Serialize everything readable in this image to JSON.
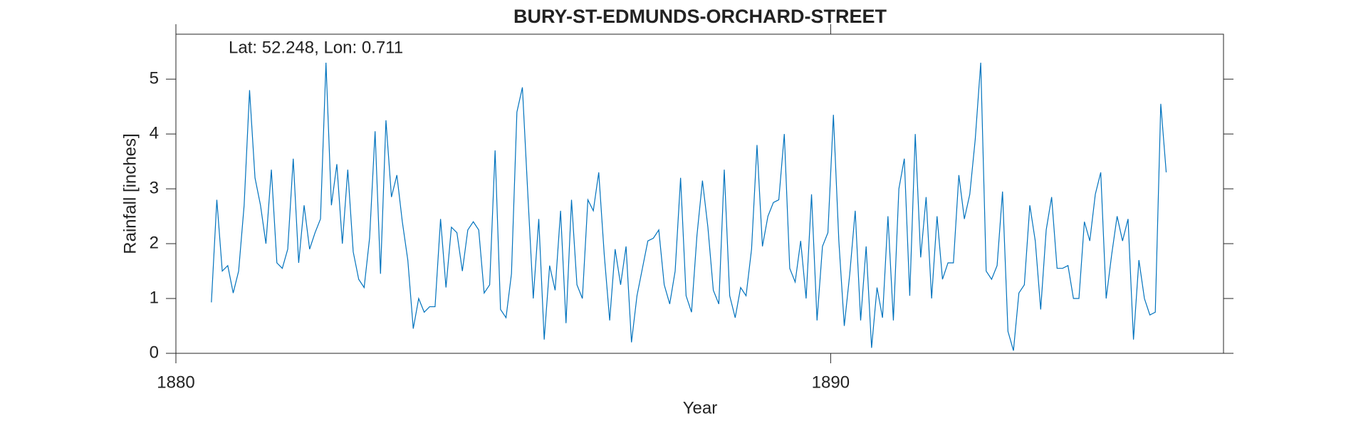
{
  "chart_data": {
    "type": "line",
    "title": "BURY-ST-EDMUNDS-ORCHARD-STREET",
    "annotation": "Lat: 52.248, Lon: 0.711",
    "x_label": "Year",
    "y_label": "Rainfall [inches]",
    "xlim": [
      1880,
      1896
    ],
    "xticks": [
      1880,
      1890
    ],
    "ylim": [
      0,
      5.82
    ],
    "yticks": [
      0,
      1,
      2,
      3,
      4,
      5
    ],
    "color": "#0072bd",
    "x": [
      1880.542,
      1880.625,
      1880.708,
      1880.792,
      1880.875,
      1880.958,
      1881.042,
      1881.125,
      1881.208,
      1881.292,
      1881.375,
      1881.458,
      1881.542,
      1881.625,
      1881.708,
      1881.792,
      1881.875,
      1881.958,
      1882.042,
      1882.125,
      1882.208,
      1882.292,
      1882.375,
      1882.458,
      1882.542,
      1882.625,
      1882.708,
      1882.792,
      1882.875,
      1882.958,
      1883.042,
      1883.125,
      1883.208,
      1883.292,
      1883.375,
      1883.458,
      1883.542,
      1883.625,
      1883.708,
      1883.792,
      1883.875,
      1883.958,
      1884.042,
      1884.125,
      1884.208,
      1884.292,
      1884.375,
      1884.458,
      1884.542,
      1884.625,
      1884.708,
      1884.792,
      1884.875,
      1884.958,
      1885.042,
      1885.125,
      1885.208,
      1885.292,
      1885.375,
      1885.458,
      1885.542,
      1885.625,
      1885.708,
      1885.792,
      1885.875,
      1885.958,
      1886.042,
      1886.125,
      1886.208,
      1886.292,
      1886.375,
      1886.458,
      1886.542,
      1886.625,
      1886.708,
      1886.792,
      1886.875,
      1886.958,
      1887.042,
      1887.125,
      1887.208,
      1887.292,
      1887.375,
      1887.458,
      1887.542,
      1887.625,
      1887.708,
      1887.792,
      1887.875,
      1887.958,
      1888.042,
      1888.125,
      1888.208,
      1888.292,
      1888.375,
      1888.458,
      1888.542,
      1888.625,
      1888.708,
      1888.792,
      1888.875,
      1888.958,
      1889.042,
      1889.125,
      1889.208,
      1889.292,
      1889.375,
      1889.458,
      1889.542,
      1889.625,
      1889.708,
      1889.792,
      1889.875,
      1889.958,
      1890.042,
      1890.125,
      1890.208,
      1890.292,
      1890.375,
      1890.458,
      1890.542,
      1890.625,
      1890.708,
      1890.792,
      1890.875,
      1890.958,
      1891.042,
      1891.125,
      1891.208,
      1891.292,
      1891.375,
      1891.458,
      1891.542,
      1891.625,
      1891.708,
      1891.792,
      1891.875,
      1891.958,
      1892.042,
      1892.125,
      1892.208,
      1892.292,
      1892.375,
      1892.458,
      1892.542,
      1892.625,
      1892.708,
      1892.792,
      1892.875,
      1892.958,
      1893.042,
      1893.125,
      1893.208,
      1893.292,
      1893.375,
      1893.458,
      1893.542,
      1893.625,
      1893.708,
      1893.792,
      1893.875,
      1893.958,
      1894.042,
      1894.125,
      1894.208,
      1894.292,
      1894.375,
      1894.458,
      1894.542,
      1894.625,
      1894.708,
      1894.792,
      1894.875,
      1894.958,
      1895.042,
      1895.125
    ],
    "values": [
      0.93,
      2.8,
      1.5,
      1.6,
      1.1,
      1.5,
      2.7,
      4.8,
      3.2,
      2.7,
      2.0,
      3.35,
      1.65,
      1.55,
      1.9,
      3.55,
      1.65,
      2.7,
      1.9,
      2.2,
      2.45,
      5.3,
      2.7,
      3.45,
      2.0,
      3.35,
      1.85,
      1.35,
      1.2,
      2.1,
      4.05,
      1.45,
      4.25,
      2.85,
      3.25,
      2.4,
      1.7,
      0.45,
      1.0,
      0.75,
      0.85,
      0.85,
      2.45,
      1.2,
      2.3,
      2.2,
      1.5,
      2.25,
      2.4,
      2.25,
      1.1,
      1.25,
      3.7,
      0.8,
      0.65,
      1.45,
      4.4,
      4.85,
      2.9,
      1.0,
      2.45,
      0.25,
      1.6,
      1.15,
      2.6,
      0.55,
      2.8,
      1.25,
      1.0,
      2.8,
      2.6,
      3.3,
      1.8,
      0.6,
      1.9,
      1.25,
      1.95,
      0.2,
      1.05,
      1.55,
      2.05,
      2.1,
      2.25,
      1.25,
      0.9,
      1.5,
      3.2,
      1.05,
      0.75,
      2.15,
      3.15,
      2.3,
      1.15,
      0.9,
      3.35,
      1.05,
      0.65,
      1.2,
      1.05,
      1.9,
      3.8,
      1.95,
      2.5,
      2.75,
      2.8,
      4.0,
      1.55,
      1.3,
      2.05,
      1.0,
      2.9,
      0.6,
      1.95,
      2.2,
      4.35,
      2.05,
      0.5,
      1.45,
      2.6,
      0.6,
      1.95,
      0.1,
      1.2,
      0.65,
      2.5,
      0.6,
      3.0,
      3.55,
      1.05,
      4.0,
      1.75,
      2.85,
      1.0,
      2.5,
      1.35,
      1.65,
      1.65,
      3.25,
      2.45,
      2.9,
      3.9,
      5.3,
      1.5,
      1.35,
      1.6,
      2.95,
      0.4,
      0.05,
      1.1,
      1.25,
      2.7,
      2.05,
      0.8,
      2.25,
      2.85,
      1.55,
      1.55,
      1.6,
      1.0,
      1.0,
      2.4,
      2.05,
      2.9,
      3.3,
      1.0,
      1.8,
      2.5,
      2.05,
      2.45,
      0.25,
      1.7,
      1.0,
      0.7,
      0.75,
      4.55,
      3.3
    ]
  }
}
